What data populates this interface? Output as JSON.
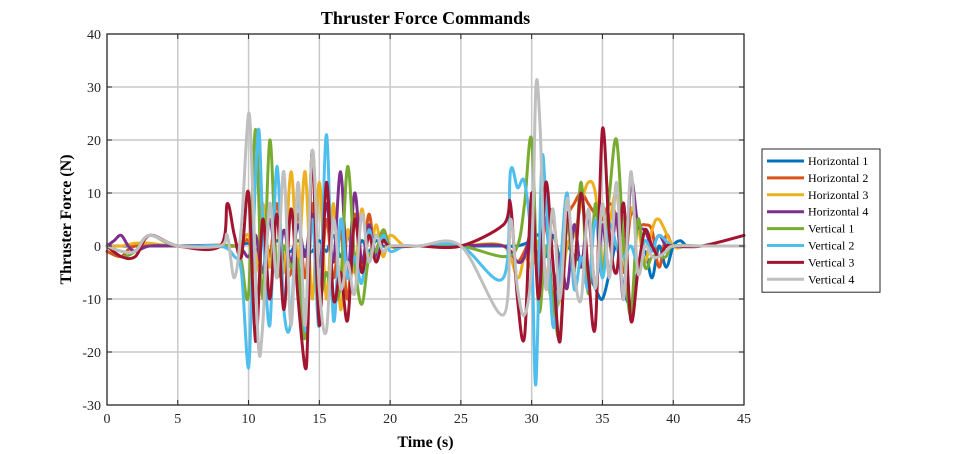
{
  "chart_data": {
    "type": "line",
    "title": "Thruster Force Commands",
    "xlabel": "Time (s)",
    "ylabel": "Thruster Force (N)",
    "xlim": [
      0,
      45
    ],
    "ylim": [
      -30,
      40
    ],
    "xticks": [
      0,
      5,
      10,
      15,
      20,
      25,
      30,
      35,
      40,
      45
    ],
    "yticks": [
      -30,
      -20,
      -10,
      0,
      10,
      20,
      30,
      40
    ],
    "grid": true,
    "legend_position": "outside-right",
    "series": [
      {
        "name": "Horizontal 1",
        "color": "#0072BD",
        "x": [
          0,
          2,
          5,
          8,
          9,
          10,
          10.5,
          11,
          11.5,
          12,
          12.5,
          13,
          13.5,
          14,
          14.5,
          15,
          15.5,
          16,
          16.5,
          17,
          17.5,
          18,
          18.5,
          19,
          19.5,
          20,
          21,
          22,
          25,
          28,
          29,
          30,
          30.5,
          31,
          31.5,
          32,
          32.5,
          33,
          33.5,
          34,
          34.5,
          35,
          35.5,
          36,
          36.5,
          37,
          37.5,
          38,
          38.5,
          39,
          39.5,
          40,
          40.5,
          41,
          42,
          43,
          45
        ],
        "y": [
          0,
          0,
          0,
          0,
          0,
          0.5,
          -1,
          1,
          -1,
          1,
          -0.5,
          -1,
          1,
          -1,
          -1,
          1,
          -1,
          2,
          -2,
          2,
          -2,
          1,
          -1,
          1,
          0,
          0,
          0,
          0,
          0,
          0,
          0,
          1,
          2,
          -2,
          2,
          -2,
          0,
          -2,
          -3,
          -5,
          -8,
          -10,
          -5,
          0,
          -8,
          -11,
          -5,
          -1,
          -6,
          0,
          -4,
          0,
          1,
          0,
          0,
          0,
          0
        ]
      },
      {
        "name": "Horizontal 2",
        "color": "#D95319",
        "x": [
          0,
          1,
          2,
          5,
          9,
          10,
          10.5,
          11,
          11.5,
          12,
          12.5,
          13,
          13.5,
          14,
          14.5,
          15,
          15.5,
          16,
          16.5,
          17,
          17.5,
          18,
          18.5,
          19,
          19.5,
          20,
          21,
          22,
          25,
          28,
          29,
          30,
          30.5,
          31,
          31.5,
          32,
          32.5,
          33,
          33.5,
          34,
          34.5,
          35,
          35.5,
          36,
          36.5,
          37,
          37.5,
          38,
          38.5,
          39,
          39.5,
          40,
          41,
          42,
          43,
          45
        ],
        "y": [
          -1,
          -2,
          0,
          0,
          0,
          1,
          -5,
          5,
          -2,
          8,
          -3,
          -5,
          6,
          -6,
          8,
          -8,
          5,
          -6,
          3,
          -10,
          6,
          -5,
          6,
          -3,
          3,
          0,
          0,
          0,
          0,
          0,
          -3,
          1,
          -5,
          5,
          6,
          -5,
          5,
          8,
          10,
          8,
          6,
          5,
          8,
          5,
          -5,
          6,
          4,
          4,
          3,
          -4,
          2,
          0,
          0,
          0,
          0,
          0
        ]
      },
      {
        "name": "Horizontal 3",
        "color": "#EDB120",
        "x": [
          0,
          1,
          2,
          3,
          5,
          9,
          10,
          10.5,
          11,
          11.5,
          12,
          12.5,
          13,
          13.5,
          14,
          14.5,
          15,
          15.5,
          16,
          16.5,
          17,
          17.5,
          18,
          18.5,
          19,
          19.5,
          20,
          21,
          22,
          25,
          28,
          29,
          29.5,
          30,
          30.5,
          31,
          31.5,
          32,
          32.5,
          33,
          33.5,
          34,
          34.5,
          35,
          35.5,
          36,
          36.5,
          37,
          37.5,
          38,
          38.5,
          39,
          40,
          41,
          42,
          43,
          45
        ],
        "y": [
          0,
          0,
          0.5,
          0.5,
          0,
          0,
          2,
          -5,
          8,
          -4,
          6,
          -5,
          14,
          -3,
          14,
          -10,
          12,
          -10,
          8,
          -12,
          3,
          -5,
          7,
          -3,
          4,
          -2,
          2,
          0,
          0,
          0,
          0,
          -6,
          -2,
          -4,
          1,
          -5,
          -11,
          -10,
          0,
          2,
          8,
          12,
          10,
          -3,
          4,
          10,
          -2,
          7,
          4,
          -3,
          3,
          5,
          0,
          0,
          0,
          0,
          0
        ]
      },
      {
        "name": "Horizontal 4",
        "color": "#7E2F8E",
        "x": [
          0,
          0.5,
          1,
          1.5,
          2,
          3,
          5,
          9,
          10,
          10.5,
          11,
          11.5,
          12,
          12.5,
          13,
          13.5,
          14,
          14.5,
          15,
          15.5,
          16,
          16.5,
          17,
          17.5,
          18,
          18.5,
          19,
          19.5,
          20,
          22,
          25,
          28,
          29,
          29.5,
          30,
          30.5,
          31,
          31.5,
          32,
          32.5,
          33,
          33.5,
          34,
          34.5,
          35,
          35.5,
          36,
          36.5,
          37,
          37.5,
          38,
          38.5,
          39,
          39.5,
          40,
          42,
          45
        ],
        "y": [
          0,
          1,
          2,
          0,
          -1,
          0,
          0,
          0,
          -2,
          2,
          -5,
          5,
          -4,
          3,
          -3,
          4,
          -2,
          6,
          -4,
          8,
          -3,
          14,
          -5,
          10,
          -3,
          4,
          -2,
          2,
          0,
          0,
          0,
          0,
          -3,
          -2,
          3,
          -2,
          5,
          -10,
          -2,
          -8,
          4,
          -4,
          6,
          -8,
          4,
          -5,
          6,
          -10,
          12,
          4,
          3,
          0,
          2,
          0,
          0,
          0,
          0
        ]
      },
      {
        "name": "Vertical 1",
        "color": "#77AC30",
        "x": [
          0,
          1,
          2,
          3,
          5,
          9,
          9.5,
          10,
          10.5,
          11,
          11.5,
          12,
          12.5,
          13,
          13.5,
          14,
          14.5,
          15,
          15.5,
          16,
          16.5,
          17,
          17.5,
          18,
          18.5,
          19,
          19.5,
          20,
          21,
          22,
          25,
          28,
          29,
          29.5,
          30,
          30.5,
          31,
          31.5,
          32,
          32.5,
          33,
          33.5,
          34,
          34.5,
          35,
          35.5,
          36,
          36.5,
          37,
          37.5,
          38,
          38.5,
          39,
          39.5,
          40,
          42,
          45
        ],
        "y": [
          0,
          -2,
          -1,
          2,
          0,
          0,
          -3,
          -9,
          22,
          -10,
          20,
          -5,
          0,
          -4,
          -3,
          -17,
          18,
          -8,
          -5,
          -10,
          -7,
          15,
          -3,
          -11,
          -2,
          -1,
          3,
          0,
          0,
          0,
          0,
          -2,
          0,
          8,
          20,
          -12,
          0,
          -10,
          -17,
          4,
          -5,
          12,
          -9,
          8,
          -5,
          10,
          20,
          0,
          -13,
          5,
          -4,
          -2,
          -2,
          -2,
          0,
          0,
          0
        ]
      },
      {
        "name": "Vertical 2",
        "color": "#4DBEEE",
        "x": [
          0,
          1,
          2,
          3,
          5,
          8,
          9,
          9.5,
          10,
          10.3,
          10.7,
          11,
          11.5,
          12,
          12.5,
          13,
          13.5,
          14,
          14.5,
          15,
          15.5,
          16,
          16.5,
          17,
          17.5,
          18,
          18.5,
          19,
          19.5,
          20,
          21,
          22,
          25,
          28,
          28.5,
          29,
          29.5,
          30,
          30.3,
          30.7,
          31,
          31.5,
          32,
          32.5,
          33,
          33.5,
          34,
          34.5,
          35,
          35.5,
          36,
          36.5,
          37,
          37.5,
          38,
          38.5,
          39,
          40,
          42,
          45
        ],
        "y": [
          0,
          -1,
          -1,
          2,
          0,
          0,
          -2,
          -5,
          -23,
          0,
          22,
          5,
          -15,
          15,
          -12,
          -14,
          10,
          -16,
          5,
          -15,
          21,
          -14,
          5,
          -6,
          -2,
          -7,
          3,
          -3,
          2,
          -1,
          0,
          0,
          0,
          -6,
          14,
          11,
          12,
          -1,
          -26,
          15,
          9,
          -15,
          -5,
          10,
          -8,
          -2,
          -8,
          5,
          -6,
          4,
          0,
          -2,
          0,
          -3,
          1,
          -1,
          2,
          0,
          0,
          0
        ]
      },
      {
        "name": "Vertical 3",
        "color": "#A2142F",
        "x": [
          0,
          1,
          2,
          3,
          5,
          8,
          8.5,
          9,
          9.5,
          10,
          10.5,
          11,
          11.5,
          12,
          12.5,
          13,
          13.5,
          14,
          14.2,
          14.5,
          15,
          15.5,
          16,
          16.5,
          17,
          17.5,
          18,
          18.5,
          19,
          19.5,
          20,
          22,
          25,
          28,
          28.5,
          29,
          29.5,
          30,
          30.5,
          31,
          31.5,
          32,
          32.5,
          33,
          33.5,
          34,
          34.5,
          35,
          35.5,
          36,
          36.5,
          37,
          37.5,
          38,
          38.5,
          39,
          39.5,
          40,
          42,
          45
        ],
        "y": [
          0,
          -2,
          -2,
          2,
          0,
          0,
          8,
          2,
          -2,
          10,
          -18,
          5,
          -10,
          6,
          -12,
          7,
          -10,
          -23,
          -15,
          18,
          -15,
          12,
          -10,
          -5,
          -14,
          5,
          -5,
          2,
          -3,
          1,
          0,
          0,
          0,
          4,
          8,
          -10,
          -17,
          10,
          -10,
          12,
          -3,
          -18,
          6,
          -4,
          10,
          -5,
          -15,
          22,
          2,
          -5,
          8,
          -14,
          -5,
          3,
          0,
          -2,
          0,
          0,
          0,
          2
        ]
      },
      {
        "name": "Vertical 4",
        "color": "#BFBFBF",
        "x": [
          0,
          1,
          2,
          3,
          5,
          8,
          8.5,
          9,
          9.5,
          10,
          10.3,
          10.7,
          11,
          11.5,
          12,
          12.5,
          13,
          13.5,
          14,
          14.5,
          15,
          15.5,
          16,
          16.5,
          17,
          17.5,
          18,
          18.5,
          19,
          19.5,
          20,
          22,
          25,
          28,
          28.5,
          29,
          29.5,
          30,
          30.3,
          30.6,
          31,
          31.5,
          32,
          32.5,
          33,
          33.5,
          34,
          34.5,
          35,
          35.5,
          36,
          36.5,
          37,
          37.5,
          38,
          38.5,
          39,
          39.5,
          40,
          42,
          45
        ],
        "y": [
          0,
          -1,
          -1,
          2,
          0,
          0,
          2,
          -6,
          4,
          25,
          10,
          -19,
          -15,
          8,
          -6,
          14,
          -15,
          12,
          -15,
          18,
          -8,
          -16,
          5,
          -8,
          -3,
          -9,
          6,
          -3,
          2,
          -1,
          0,
          0,
          0,
          -13,
          5,
          -8,
          -13,
          -3,
          30,
          22,
          -8,
          7,
          -10,
          9,
          -5,
          -10,
          7,
          -8,
          8,
          -6,
          12,
          -10,
          14,
          -5,
          0,
          -2,
          -2,
          -1,
          0,
          0,
          0
        ]
      }
    ]
  }
}
